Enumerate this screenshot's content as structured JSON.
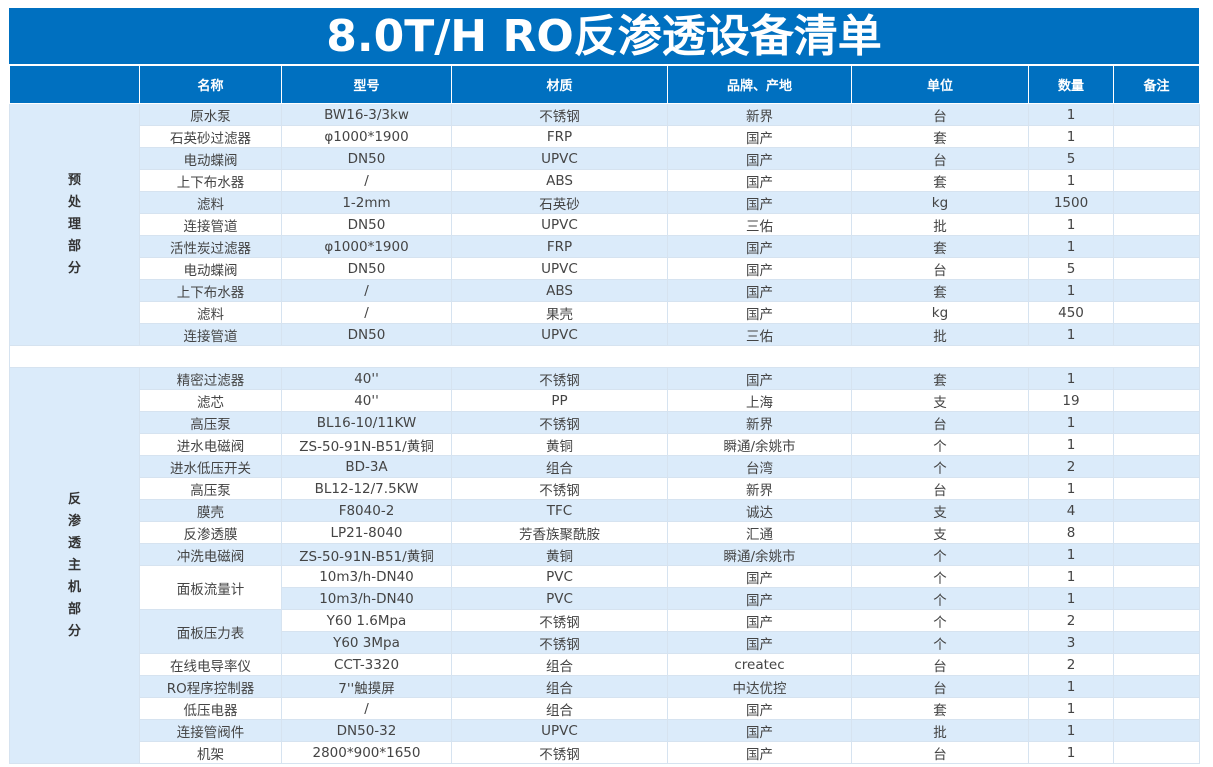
{
  "title": "8.0T/H RO反渗透设备清单",
  "headers": [
    "",
    "名称",
    "型号",
    "材质",
    "品牌、产地",
    "单位",
    "数量",
    "备注"
  ],
  "colors": {
    "header": "#0070c0",
    "stripe": "#dbebfa"
  },
  "sections": [
    {
      "label": "预处理部分",
      "rows": [
        [
          "原水泵",
          "BW16-3/3kw",
          "不锈钢",
          "新界",
          "台",
          "1",
          ""
        ],
        [
          "石英砂过滤器",
          "φ1000*1900",
          "FRP",
          "国产",
          "套",
          "1",
          ""
        ],
        [
          "电动蝶阀",
          "DN50",
          "UPVC",
          "国产",
          "台",
          "5",
          ""
        ],
        [
          "上下布水器",
          "/",
          "ABS",
          "国产",
          "套",
          "1",
          ""
        ],
        [
          "滤料",
          "1-2mm",
          "石英砂",
          "国产",
          "kg",
          "1500",
          ""
        ],
        [
          "连接管道",
          "DN50",
          "UPVC",
          "三佑",
          "批",
          "1",
          ""
        ],
        [
          "活性炭过滤器",
          "φ1000*1900",
          "FRP",
          "国产",
          "套",
          "1",
          ""
        ],
        [
          "电动蝶阀",
          "DN50",
          "UPVC",
          "国产",
          "台",
          "5",
          ""
        ],
        [
          "上下布水器",
          "/",
          "ABS",
          "国产",
          "套",
          "1",
          ""
        ],
        [
          "滤料",
          "/",
          "果壳",
          "国产",
          "kg",
          "450",
          ""
        ],
        [
          "连接管道",
          "DN50",
          "UPVC",
          "三佑",
          "批",
          "1",
          ""
        ]
      ]
    },
    {
      "label": "反渗透主机部分",
      "rows": [
        [
          "精密过滤器",
          "40''",
          "不锈钢",
          "国产",
          "套",
          "1",
          ""
        ],
        [
          "滤芯",
          "40''",
          "PP",
          "上海",
          "支",
          "19",
          ""
        ],
        [
          "高压泵",
          "BL16-10/11KW",
          "不锈钢",
          "新界",
          "台",
          "1",
          ""
        ],
        [
          "进水电磁阀",
          "ZS-50-91N-B51/黄铜",
          "黄铜",
          "瞬通/余姚市",
          "个",
          "1",
          ""
        ],
        [
          "进水低压开关",
          "BD-3A",
          "组合",
          "台湾",
          "个",
          "2",
          ""
        ],
        [
          "高压泵",
          "BL12-12/7.5KW",
          "不锈钢",
          "新界",
          "台",
          "1",
          ""
        ],
        [
          "膜壳",
          "F8040-2",
          "TFC",
          "诚达",
          "支",
          "4",
          ""
        ],
        [
          "反渗透膜",
          "LP21-8040",
          "芳香族聚酰胺",
          "汇通",
          "支",
          "8",
          ""
        ],
        [
          "冲洗电磁阀",
          "ZS-50-91N-B51/黄铜",
          "黄铜",
          "瞬通/余姚市",
          "个",
          "1",
          ""
        ],
        [
          "面板流量计",
          "10m3/h-DN40",
          "PVC",
          "国产",
          "个",
          "1",
          ""
        ],
        [
          "",
          "10m3/h-DN40",
          "PVC",
          "国产",
          "个",
          "1",
          ""
        ],
        [
          "面板压力表",
          "Y60 1.6Mpa",
          "不锈钢",
          "国产",
          "个",
          "2",
          ""
        ],
        [
          "",
          "Y60 3Mpa",
          "不锈钢",
          "国产",
          "个",
          "3",
          ""
        ],
        [
          "在线电导率仪",
          "CCT-3320",
          "组合",
          "createc",
          "台",
          "2",
          ""
        ],
        [
          "RO程序控制器",
          "7''触摸屏",
          "组合",
          "中达优控",
          "台",
          "1",
          ""
        ],
        [
          "低压电器",
          "/",
          "组合",
          "国产",
          "套",
          "1",
          ""
        ],
        [
          "连接管阀件",
          "DN50-32",
          "UPVC",
          "国产",
          "批",
          "1",
          ""
        ],
        [
          "机架",
          "2800*900*1650",
          "不锈钢",
          "国产",
          "台",
          "1",
          ""
        ]
      ]
    }
  ]
}
